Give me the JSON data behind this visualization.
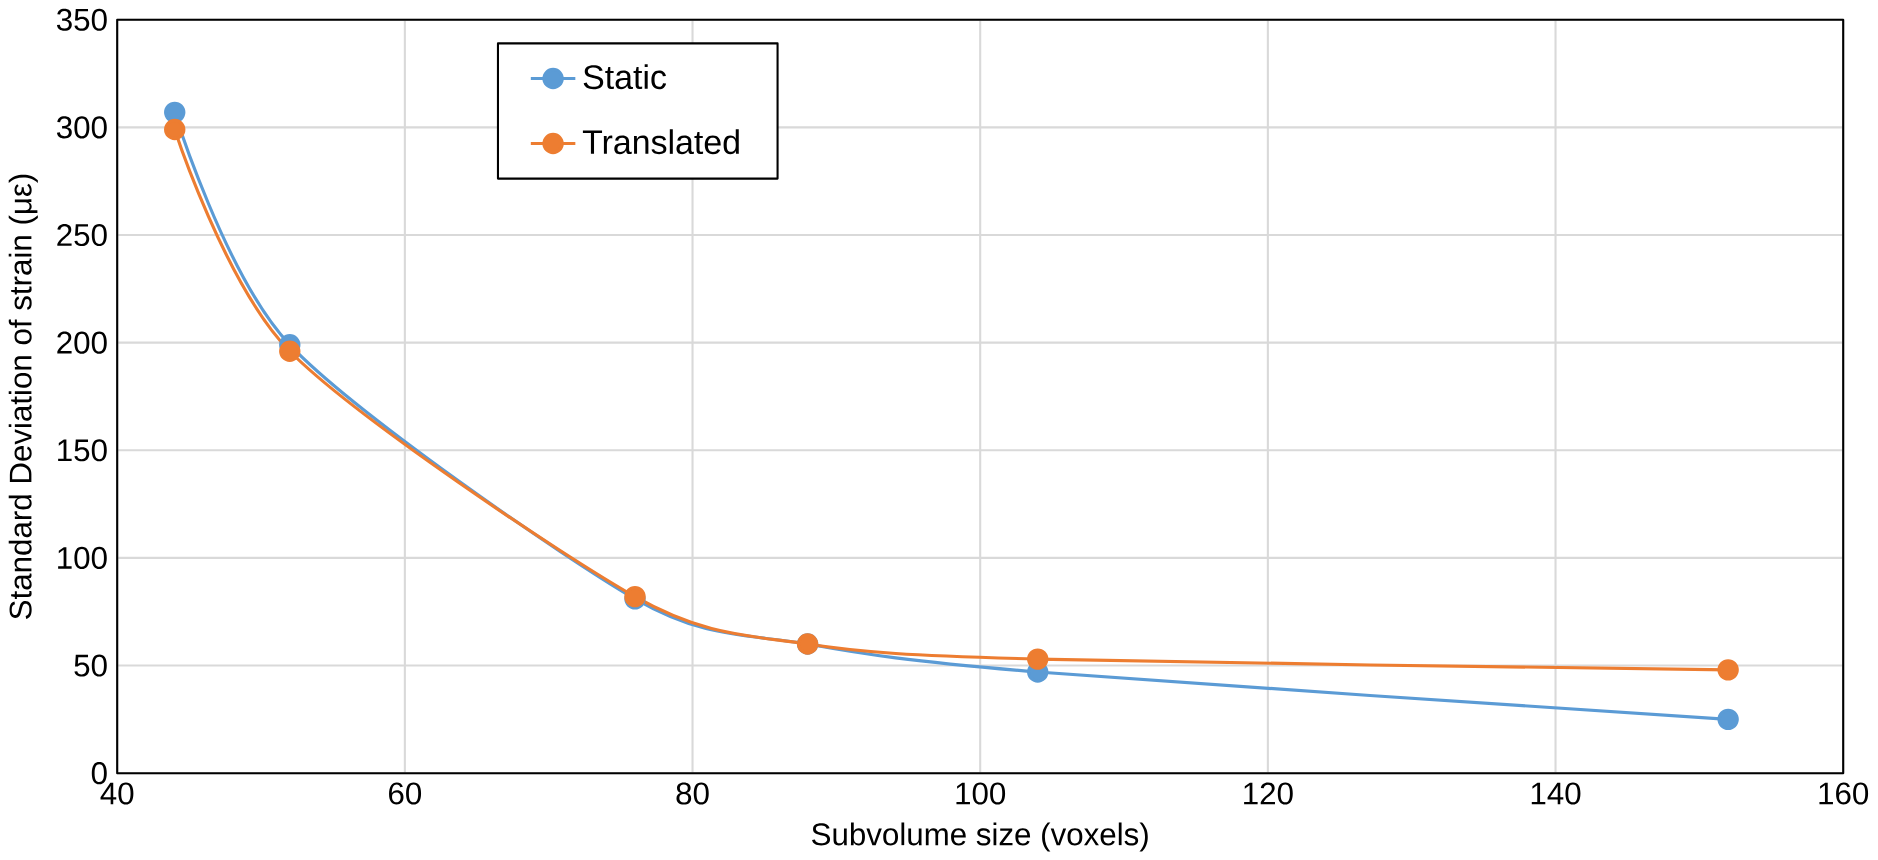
{
  "chart_data": {
    "type": "line",
    "xlabel": "Subvolume size (voxels)",
    "ylabel": "Standard Deviation of strain (με)",
    "x": [
      44,
      52,
      76,
      88,
      104,
      152
    ],
    "series": [
      {
        "name": "Static",
        "color": "#5b9bd5",
        "values": [
          307,
          199,
          81,
          60,
          47,
          25
        ]
      },
      {
        "name": "Translated",
        "color": "#ed7d31",
        "values": [
          299,
          196,
          82,
          60,
          53,
          48
        ]
      }
    ],
    "xlim": [
      40,
      160
    ],
    "xticks": [
      40,
      60,
      80,
      100,
      120,
      140,
      160
    ],
    "ylim": [
      0,
      350
    ],
    "yticks": [
      0,
      50,
      100,
      150,
      200,
      250,
      300,
      350
    ],
    "grid": true,
    "legend": "top left",
    "marker": "circle",
    "line_style": "solid"
  }
}
